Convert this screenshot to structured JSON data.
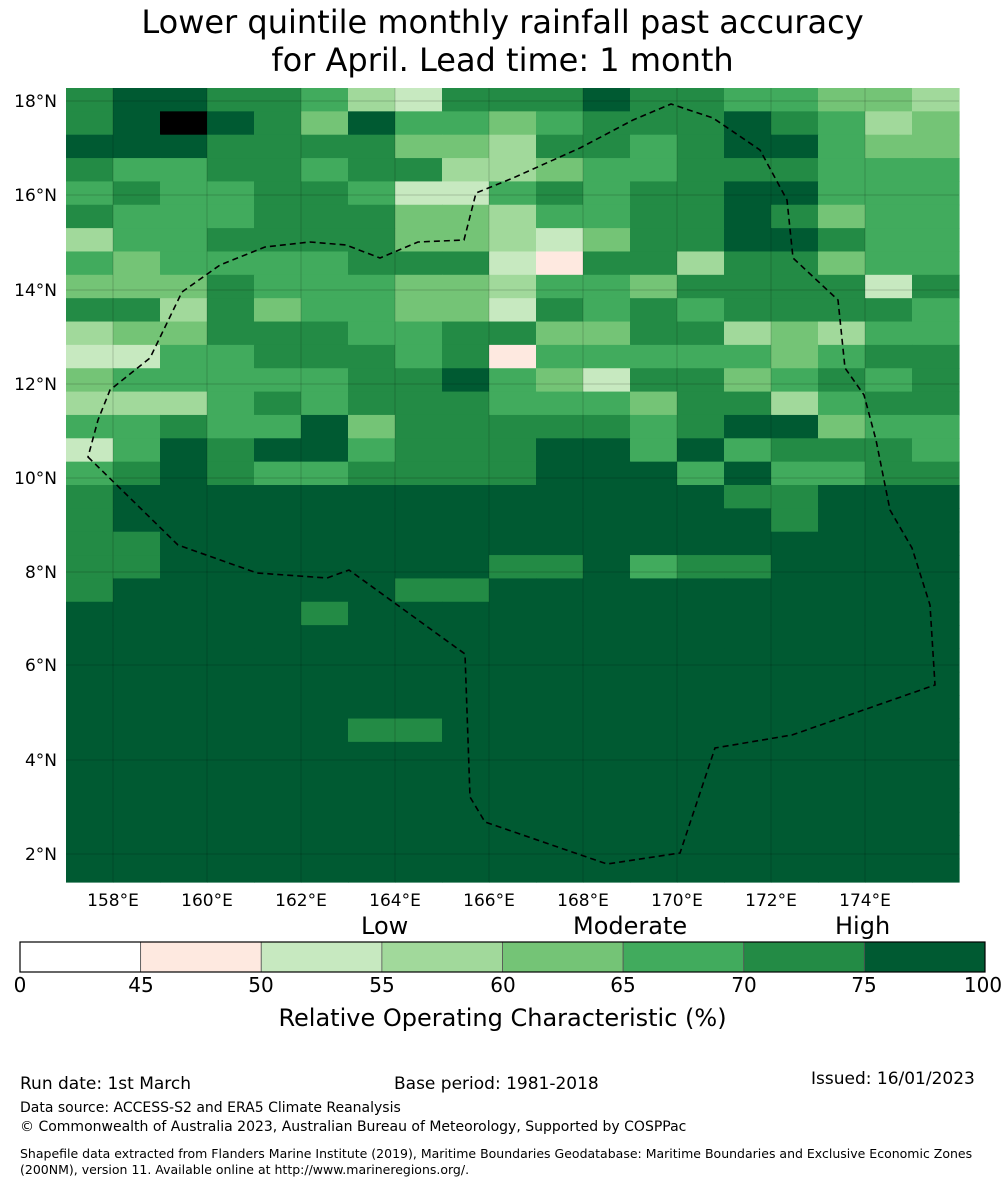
{
  "title_line1": "Lower quintile monthly rainfall past accuracy",
  "title_line2": "for April. Lead time: 1 month",
  "lat_labels": [
    "18°N",
    "16°N",
    "14°N",
    "12°N",
    "10°N",
    "8°N",
    "6°N",
    "4°N",
    "2°N"
  ],
  "lon_labels": [
    "158°E",
    "160°E",
    "162°E",
    "164°E",
    "166°E",
    "168°E",
    "170°E",
    "172°E",
    "174°E"
  ],
  "colorbar": {
    "categories": [
      "Low",
      "Moderate",
      "High"
    ],
    "ticks": [
      "0",
      "45",
      "50",
      "55",
      "60",
      "65",
      "70",
      "75",
      "100"
    ],
    "colors": [
      "#ffffff",
      "#fee9e0",
      "#c7e9c0",
      "#a1d99b",
      "#74c476",
      "#41ab5d",
      "#238b45",
      "#005a32"
    ],
    "label": "Relative Operating Characteristic (%)"
  },
  "footer": {
    "run_date": "Run date: 1st March",
    "base_period": "Base period: 1981-2018",
    "issued": "Issued: 16/01/2023",
    "data_source": "Data source: ACCESS-S2 and ERA5 Climate Reanalysis",
    "copyright": "© Commonwealth of Australia 2023, Australian Bureau of Meteorology, Supported by COSPPac",
    "shapefile": "Shapefile data extracted from Flanders Marine Institute (2019), Maritime Boundaries Geodatabase: Maritime Boundaries and Exclusive Economic Zones (200NM), version 11. Available online at http://www.marineregions.org/."
  },
  "grid": [
    "6776653266676655443",
    "6787647554566676534",
    "7776666443665677544",
    "6556656633455666555",
    "5655665225656677555",
    "6555666443556676455",
    "3556666443246677655",
    "5455556662166366455",
    "4446555443554666626",
    "6636455442656566665",
    "3446665566446634355",
    "2255666561555554566",
    "4555556675426645656",
    "3335656665554663566",
    "5565574666665677455",
    "2576775666775756665",
    "5676556666777575566",
    "6777777777777766777",
    "6777777777777776777",
    "6677777777777777777",
    "6677777776675667777",
    "6777777667777777777",
    "7777767777777777777",
    "7777777777777777777",
    "7777777777777777777",
    "7777777777777777777",
    "7777777777777777777",
    "7777776677777777777",
    "7777777777777777777",
    "7777777777777777777",
    "7777777777777777777",
    "7777777777777777777",
    "7777777777777777777",
    "7777777777777777777"
  ]
}
